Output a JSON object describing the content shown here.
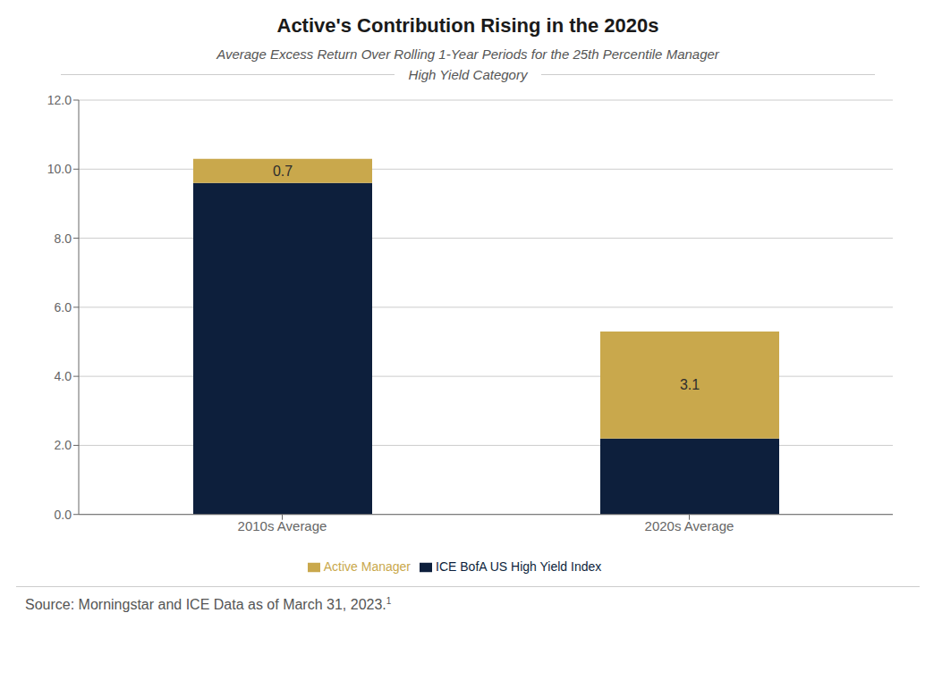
{
  "chart_data": {
    "type": "bar",
    "stacked": true,
    "title": "Active's Contribution Rising in the 2020s",
    "subtitle": [
      "Average Excess Return Over Rolling 1-Year Periods for the 25th Percentile Manager",
      "High Yield Category"
    ],
    "categories": [
      "2010s Average",
      "2020s Average"
    ],
    "series": [
      {
        "name": "ICE BofA US High Yield Index",
        "color": "#0d1f3c",
        "values": [
          9.6,
          2.2
        ]
      },
      {
        "name": "Active Manager",
        "color": "#c9a84c",
        "values": [
          0.7,
          3.1
        ],
        "data_labels": true
      }
    ],
    "ylim": [
      0,
      12.0
    ],
    "yticks": [
      {
        "value": 0.0,
        "label": "0.0"
      },
      {
        "value": 2.0,
        "label": "2.0"
      },
      {
        "value": 4.0,
        "label": "4.0"
      },
      {
        "value": 6.0,
        "label": "6.0"
      },
      {
        "value": 8.0,
        "label": "8.0"
      },
      {
        "value": 10.0,
        "label": "10.0"
      },
      {
        "value": 12.0,
        "label": "12.0"
      }
    ],
    "grid": true,
    "legend": "bottom",
    "annotations": [
      {
        "text": "Source: Morningstar and ICE Data as of March 31, 2023.",
        "superscript": "1"
      }
    ]
  }
}
